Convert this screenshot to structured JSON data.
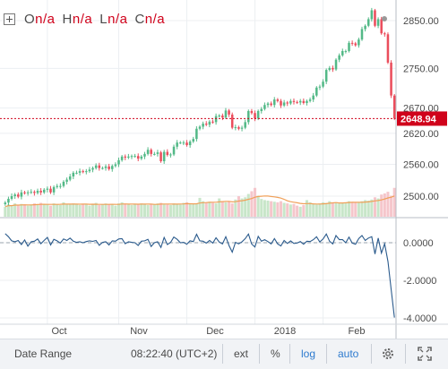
{
  "legend": {
    "o": "O",
    "o_v": "n/a",
    "h": "H",
    "h_v": "n/a",
    "l": "L",
    "l_v": "n/a",
    "c": "C",
    "c_v": "n/a"
  },
  "price_scale": {
    "labels": [
      "2850.00",
      "2750.00",
      "2670.00",
      "2620.00",
      "2560.00",
      "2500.00"
    ],
    "last_label": "2648.94"
  },
  "osc_scale": {
    "labels": [
      "0.0000",
      "-2.0000",
      "-4.0000"
    ]
  },
  "time_axis": {
    "labels": [
      "Oct",
      "Nov",
      "Dec",
      "2018",
      "Feb"
    ]
  },
  "toolbar": {
    "date_range": "Date Range",
    "time": "08:22:40 (UTC+2)",
    "ext": "ext",
    "percent": "%",
    "log": "log",
    "auto": "auto"
  },
  "colors": {
    "up": "#53b987",
    "down": "#eb4d5c",
    "volume_up": "#c8e6c9",
    "volume_down": "#f5c6cb",
    "ma": "#f0a059",
    "osc": "#2a5a8c",
    "grid": "#eceff2",
    "last_price": "#d0021b",
    "accent": "#2e7bcf"
  },
  "chart_data": [
    {
      "type": "candlestick",
      "title": "",
      "y_scale": "log",
      "ylim": [
        2470,
        2900
      ],
      "y_ticks": [
        2850,
        2750,
        2670,
        2620,
        2560,
        2500
      ],
      "x_ticks": [
        "Oct",
        "Nov",
        "Dec",
        "2018",
        "Feb"
      ],
      "last_price": 2648.94,
      "grid": true,
      "closes": [
        2488,
        2495,
        2500,
        2503,
        2499,
        2507,
        2506,
        2507,
        2508,
        2506,
        2510,
        2507,
        2512,
        2514,
        2507,
        2517,
        2519,
        2519,
        2527,
        2531,
        2537,
        2544,
        2544,
        2547,
        2546,
        2547,
        2550,
        2553,
        2558,
        2553,
        2553,
        2556,
        2551,
        2557,
        2560,
        2568,
        2575,
        2573,
        2575,
        2576,
        2576,
        2571,
        2575,
        2580,
        2588,
        2580,
        2580,
        2583,
        2566,
        2584,
        2578,
        2579,
        2594,
        2602,
        2602,
        2602,
        2597,
        2604,
        2609,
        2629,
        2633,
        2639,
        2637,
        2643,
        2642,
        2654,
        2655,
        2651,
        2665,
        2657,
        2631,
        2632,
        2629,
        2631,
        2642,
        2664,
        2660,
        2649,
        2664,
        2668,
        2676,
        2679,
        2676,
        2687,
        2684,
        2675,
        2681,
        2679,
        2684,
        2682,
        2681,
        2684,
        2680,
        2684,
        2687,
        2695,
        2711,
        2713,
        2723,
        2747,
        2751,
        2748,
        2768,
        2777,
        2786,
        2786,
        2803,
        2802,
        2798,
        2810,
        2832,
        2839,
        2853,
        2872,
        2839,
        2853,
        2823,
        2821,
        2762,
        2695,
        2649
      ],
      "volumes": [
        0.18,
        0.22,
        0.2,
        0.24,
        0.21,
        0.23,
        0.22,
        0.2,
        0.22,
        0.24,
        0.21,
        0.25,
        0.23,
        0.22,
        0.2,
        0.24,
        0.22,
        0.21,
        0.26,
        0.23,
        0.22,
        0.24,
        0.23,
        0.21,
        0.22,
        0.23,
        0.2,
        0.22,
        0.25,
        0.21,
        0.22,
        0.24,
        0.23,
        0.22,
        0.2,
        0.24,
        0.26,
        0.23,
        0.22,
        0.21,
        0.22,
        0.23,
        0.24,
        0.22,
        0.21,
        0.23,
        0.22,
        0.24,
        0.25,
        0.23,
        0.22,
        0.21,
        0.24,
        0.23,
        0.22,
        0.25,
        0.26,
        0.23,
        0.24,
        0.24,
        0.34,
        0.28,
        0.26,
        0.27,
        0.25,
        0.24,
        0.33,
        0.28,
        0.26,
        0.27,
        0.24,
        0.31,
        0.37,
        0.33,
        0.35,
        0.41,
        0.46,
        0.52,
        0.38,
        0.32,
        0.3,
        0.29,
        0.28,
        0.27,
        0.26,
        0.28,
        0.25,
        0.24,
        0.22,
        0.23,
        0.2,
        0.18,
        0.21,
        0.3,
        0.26,
        0.23,
        0.22,
        0.24,
        0.26,
        0.25,
        0.28,
        0.25,
        0.26,
        0.24,
        0.25,
        0.26,
        0.28,
        0.27,
        0.26,
        0.25,
        0.28,
        0.3,
        0.29,
        0.31,
        0.35,
        0.33,
        0.4,
        0.42,
        0.45,
        0.38,
        0.52
      ]
    },
    {
      "type": "line",
      "title": "",
      "ylim": [
        -4.3,
        0.7
      ],
      "y_ticks": [
        0,
        -2,
        -4
      ],
      "values": [
        0.48,
        0.32,
        0.1,
        0.05,
        0.12,
        -0.1,
        0.15,
        -0.18,
        0.05,
        0.08,
        0.2,
        -0.05,
        0.12,
        0.28,
        -0.12,
        0.18,
        0.1,
        -0.02,
        0.2,
        0.12,
        0.25,
        0.08,
        0.02,
        0.05,
        0.0,
        0.06,
        0.1,
        0.07,
        0.12,
        -0.14,
        0.02,
        0.05,
        -0.12,
        0.1,
        0.08,
        0.2,
        0.22,
        -0.05,
        0.05,
        0.02,
        0.0,
        -0.15,
        0.08,
        0.1,
        0.18,
        -0.2,
        0.0,
        0.05,
        -0.25,
        0.28,
        -0.1,
        0.02,
        0.3,
        0.18,
        0.0,
        0.02,
        -0.08,
        0.1,
        0.06,
        0.45,
        0.1,
        0.08,
        -0.02,
        0.12,
        -0.02,
        0.26,
        0.04,
        -0.06,
        0.32,
        -0.15,
        -0.5,
        0.02,
        -0.06,
        0.05,
        0.22,
        0.46,
        -0.07,
        -0.23,
        0.34,
        0.08,
        0.16,
        0.06,
        -0.06,
        0.22,
        -0.06,
        -0.17,
        0.12,
        -0.04,
        0.1,
        -0.04,
        -0.02,
        0.06,
        -0.08,
        0.08,
        0.06,
        0.16,
        0.32,
        0.04,
        0.2,
        0.46,
        0.08,
        -0.06,
        0.38,
        0.16,
        0.16,
        0.0,
        0.3,
        -0.02,
        -0.08,
        0.22,
        0.38,
        0.12,
        0.25,
        0.32,
        -0.6,
        0.25,
        -0.55,
        -0.05,
        -1.0,
        -2.5,
        -3.98
      ]
    }
  ]
}
